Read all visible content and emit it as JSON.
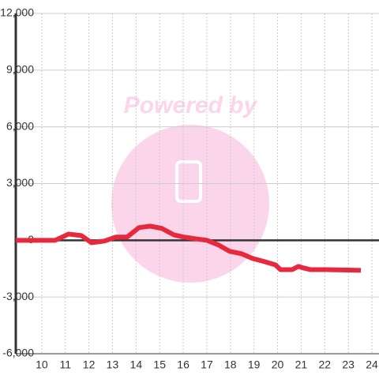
{
  "chart_data": {
    "type": "line",
    "watermark": "Powered by",
    "x": [
      8.9,
      10.57,
      11.14,
      11.68,
      12.11,
      12.65,
      13.15,
      13.62,
      14.12,
      14.59,
      15.09,
      15.6,
      16.03,
      16.53,
      17.0,
      17.5,
      17.97,
      18.47,
      18.94,
      19.45,
      19.91,
      20.12,
      20.62,
      20.88,
      21.09,
      21.39,
      22.09,
      23.53
    ],
    "series": [
      {
        "color": "#e8283c",
        "values": [
          0,
          0,
          330,
          250,
          -130,
          -40,
          170,
          170,
          670,
          750,
          630,
          290,
          170,
          80,
          0,
          -250,
          -585,
          -710,
          -960,
          -1130,
          -1300,
          -1550,
          -1550,
          -1380,
          -1460,
          -1550,
          -1550,
          -1590
        ]
      }
    ],
    "xlim": [
      8.9,
      24.3
    ],
    "xticks": [
      10,
      11,
      12,
      13,
      14,
      15,
      16,
      17,
      18,
      19,
      20,
      21,
      22,
      23,
      24
    ],
    "ylim": [
      -6000,
      12000
    ],
    "yticks": [
      {
        "value": -6000,
        "label": "-6,000"
      },
      {
        "value": -3000,
        "label": "-3,000"
      },
      0,
      {
        "value": 3000,
        "label": "3,000"
      },
      {
        "value": 6000,
        "label": "6,000"
      },
      {
        "value": 9000,
        "label": "9,000"
      },
      {
        "value": 12000,
        "label": "12,000"
      }
    ],
    "grid": true
  }
}
